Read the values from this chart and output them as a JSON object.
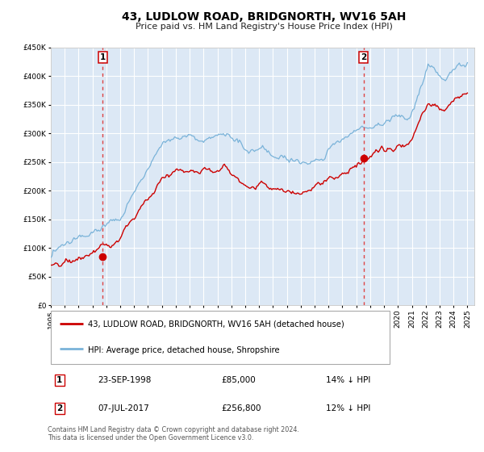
{
  "title": "43, LUDLOW ROAD, BRIDGNORTH, WV16 5AH",
  "subtitle": "Price paid vs. HM Land Registry's House Price Index (HPI)",
  "xlim": [
    1995.0,
    2025.5
  ],
  "ylim": [
    0,
    450000
  ],
  "yticks": [
    0,
    50000,
    100000,
    150000,
    200000,
    250000,
    300000,
    350000,
    400000,
    450000
  ],
  "xticks": [
    1995,
    1996,
    1997,
    1998,
    1999,
    2000,
    2001,
    2002,
    2003,
    2004,
    2005,
    2006,
    2007,
    2008,
    2009,
    2010,
    2011,
    2012,
    2013,
    2014,
    2015,
    2016,
    2017,
    2018,
    2019,
    2020,
    2021,
    2022,
    2023,
    2024,
    2025
  ],
  "property_color": "#cc0000",
  "hpi_color": "#7ab3d9",
  "background_color": "#dce8f5",
  "grid_color": "#ffffff",
  "transaction1_x": 1998.72,
  "transaction1_y": 85000,
  "transaction1_label": "1",
  "transaction1_date": "23-SEP-1998",
  "transaction1_price": "£85,000",
  "transaction1_hpi": "14% ↓ HPI",
  "transaction2_x": 2017.52,
  "transaction2_y": 256800,
  "transaction2_label": "2",
  "transaction2_date": "07-JUL-2017",
  "transaction2_price": "£256,800",
  "transaction2_hpi": "12% ↓ HPI",
  "legend_property": "43, LUDLOW ROAD, BRIDGNORTH, WV16 5AH (detached house)",
  "legend_hpi": "HPI: Average price, detached house, Shropshire",
  "footer": "Contains HM Land Registry data © Crown copyright and database right 2024.\nThis data is licensed under the Open Government Licence v3.0."
}
